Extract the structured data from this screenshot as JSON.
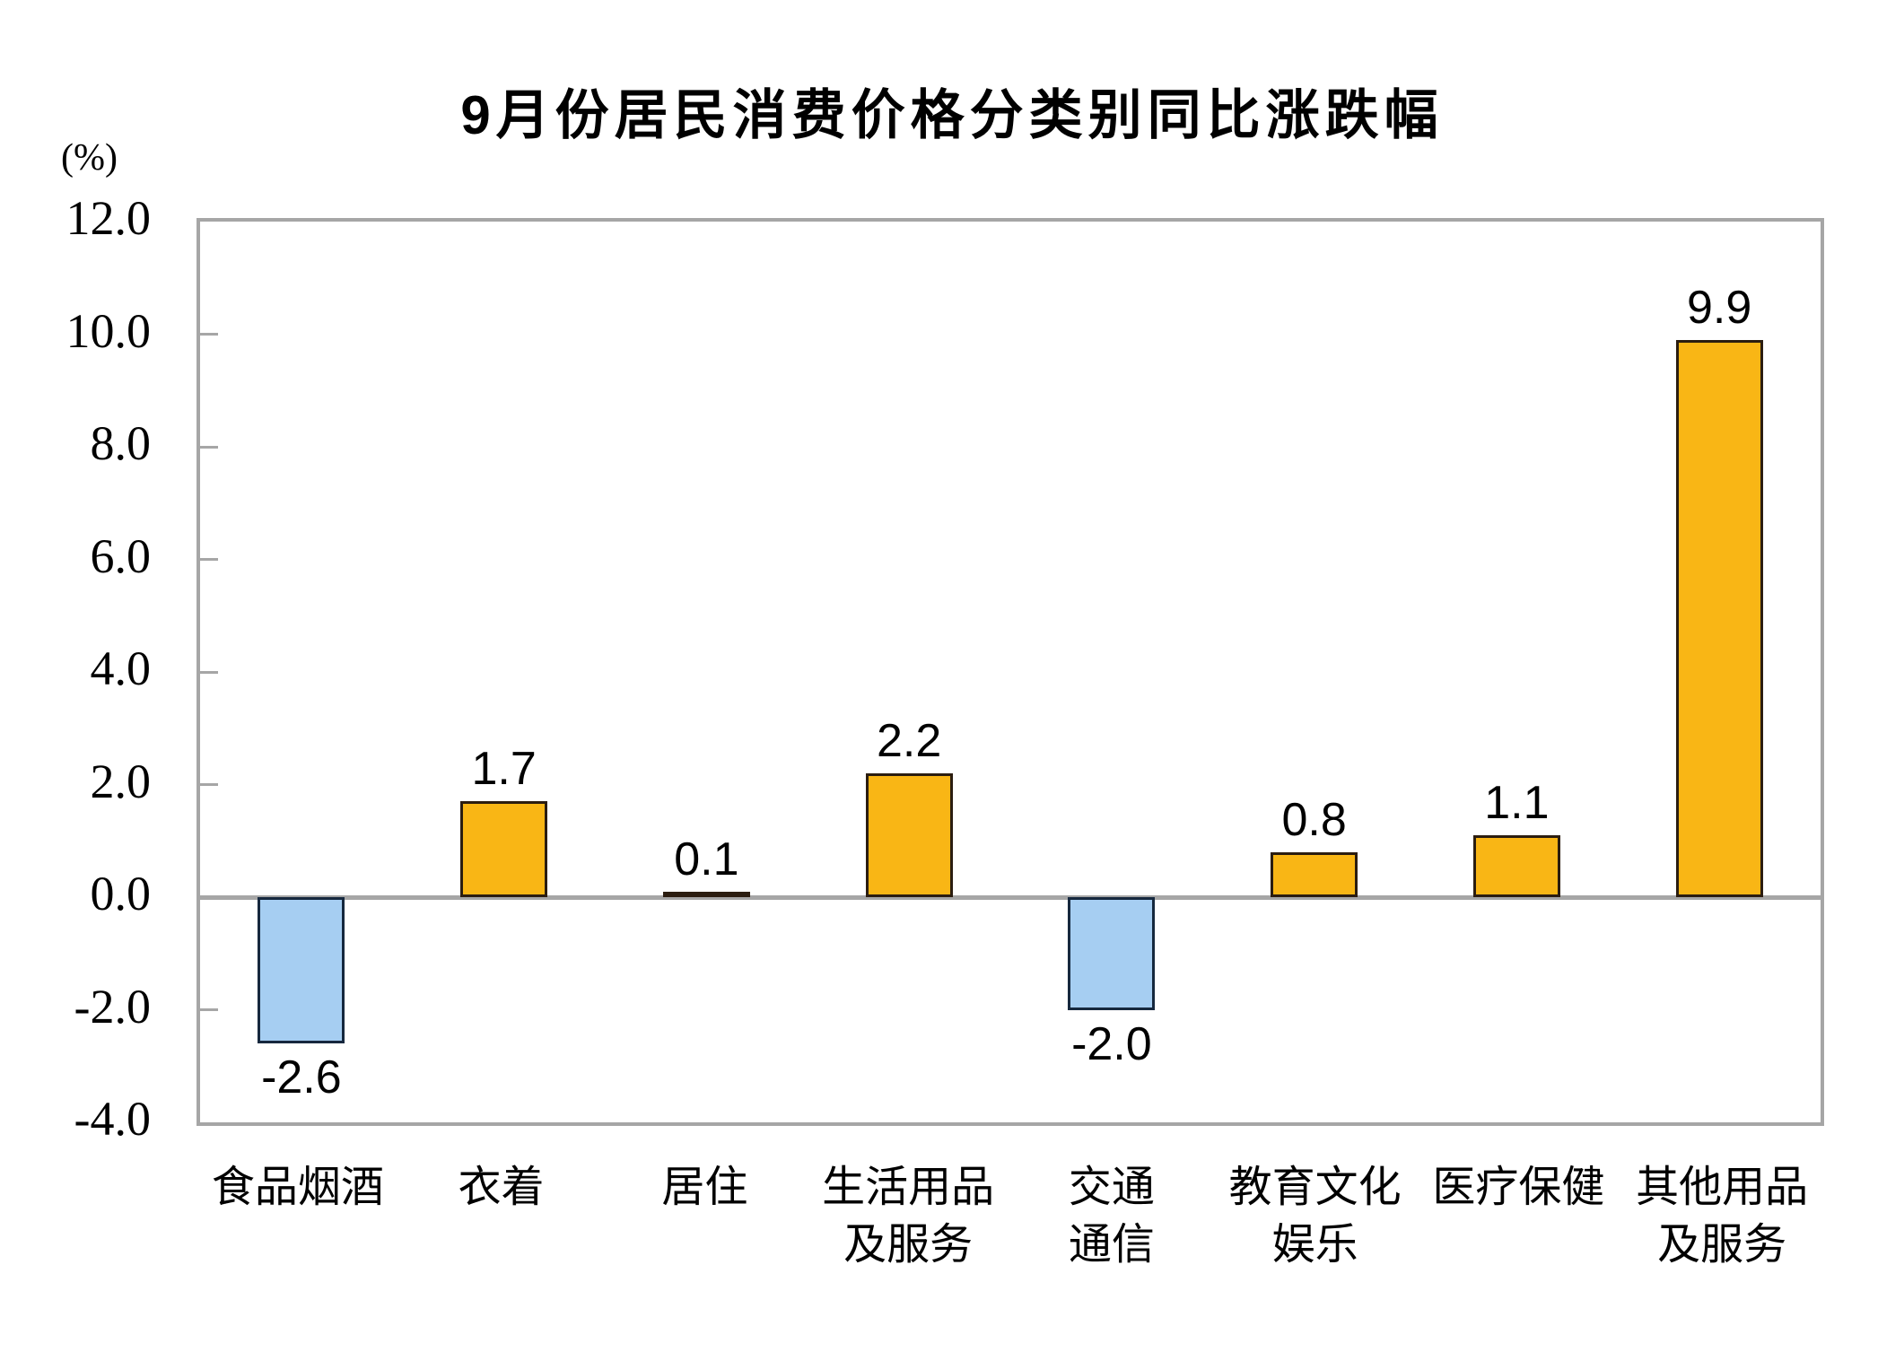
{
  "chart_data": {
    "type": "bar",
    "title": "9月份居民消费价格分类别同比涨跌幅",
    "unit_label": "(%)",
    "categories": [
      "食品烟酒",
      "衣着",
      "居住",
      "生活用品\n及服务",
      "交通\n通信",
      "教育文化\n娱乐",
      "医疗保健",
      "其他用品\n及服务"
    ],
    "values": [
      -2.6,
      1.7,
      0.1,
      2.2,
      -2.0,
      0.8,
      1.1,
      9.9
    ],
    "data_labels": [
      "-2.6",
      "1.7",
      "0.1",
      "2.2",
      "-2.0",
      "0.8",
      "1.1",
      "9.9"
    ],
    "xlabel": "",
    "ylabel": "(%)",
    "y_ticks": [
      "12.0",
      "10.0",
      "8.0",
      "6.0",
      "4.0",
      "2.0",
      "0.0",
      "-2.0",
      "-4.0"
    ],
    "y_tick_values": [
      12.0,
      10.0,
      8.0,
      6.0,
      4.0,
      2.0,
      0.0,
      -2.0,
      -4.0
    ],
    "ylim": [
      -4.0,
      12.0
    ],
    "grid": false,
    "legend": "none",
    "colors": {
      "positive_fill": "#F9B615",
      "positive_border": "#2B1D10",
      "negative_fill": "#A6CEF2",
      "negative_border": "#16283E",
      "axis": "#A6A6A6",
      "text": "#000000"
    }
  }
}
